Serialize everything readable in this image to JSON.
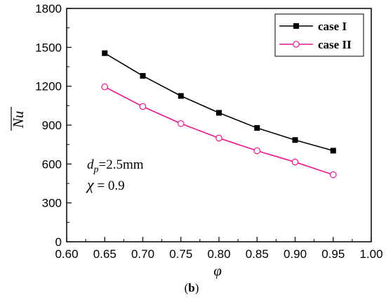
{
  "chart_data": {
    "type": "line",
    "xlabel": "φ",
    "ylabel": "Nu",
    "xlim": [
      0.6,
      1.0
    ],
    "ylim": [
      0,
      1800
    ],
    "xticks": [
      0.6,
      0.65,
      0.7,
      0.75,
      0.8,
      0.85,
      0.9,
      0.95,
      1.0
    ],
    "xtick_labels": [
      "0.60",
      "0.65",
      "0.70",
      "0.75",
      "0.80",
      "0.85",
      "0.90",
      "0.95",
      "1.00"
    ],
    "yticks": [
      0,
      300,
      600,
      900,
      1200,
      1500,
      1800
    ],
    "ytick_labels": [
      "0",
      "300",
      "600",
      "900",
      "1200",
      "1500",
      "1800"
    ],
    "grid": false,
    "legend_position": "top-right",
    "x": [
      0.65,
      0.7,
      0.75,
      0.8,
      0.85,
      0.9,
      0.95
    ],
    "series": [
      {
        "name": "case I",
        "color": "#000000",
        "marker": "filled-square",
        "values": [
          1455,
          1280,
          1125,
          995,
          878,
          785,
          703
        ]
      },
      {
        "name": "case II",
        "color": "#e8198b",
        "marker": "open-circle",
        "values": [
          1195,
          1043,
          912,
          800,
          702,
          615,
          517
        ]
      }
    ],
    "annotations": {
      "d_symbol": "d",
      "d_subscript": "p",
      "d_value": "=2.5mm",
      "chi_symbol": "χ",
      "chi_value": " = 0.9"
    },
    "caption": {
      "open": "(",
      "letter": "b",
      "close": ")"
    }
  }
}
